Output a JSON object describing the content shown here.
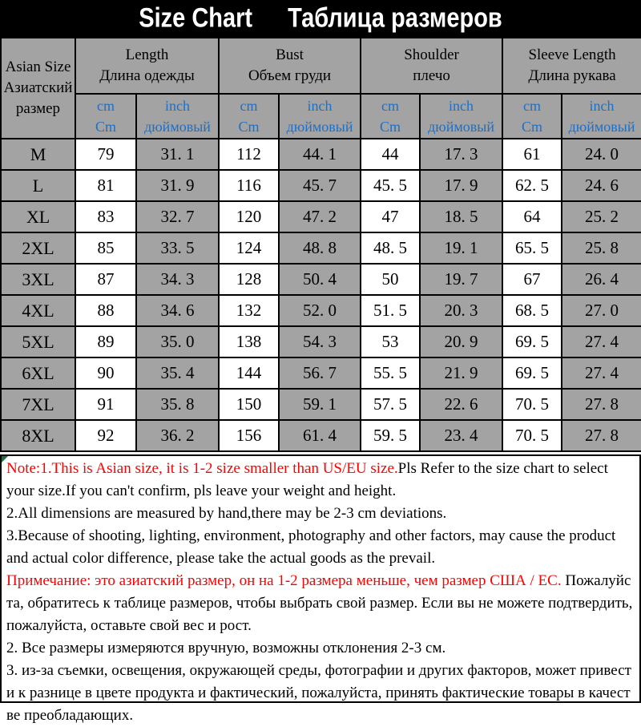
{
  "header": {
    "title_en": "Size Chart",
    "title_ru": "Таблица размеров"
  },
  "colors": {
    "banner_bg": "#000000",
    "title_text": "#ffffff",
    "table_gray": "#a3a3a3",
    "cell_white": "#ffffff",
    "unit_text_blue": "#1e6fc8",
    "note_red": "#ff0000",
    "note_black": "#000000",
    "border": "#000000",
    "corner_marker_green": "#1e7145"
  },
  "table": {
    "corner": {
      "line1": "Asian Size",
      "line2": "Азиатский",
      "line3": "размер"
    },
    "groups": [
      {
        "en": "Length",
        "ru": "Длина одежды"
      },
      {
        "en": "Bust",
        "ru": "Объем груди"
      },
      {
        "en": "Shoulder",
        "ru": "плечо"
      },
      {
        "en": "Sleeve Length",
        "ru": "Длина рукава"
      }
    ],
    "units": {
      "cm": {
        "line1": "cm",
        "line2": "Cm"
      },
      "inch": {
        "line1": "inch",
        "line2": "дюймовый"
      }
    },
    "rows": [
      {
        "size": "M",
        "values": [
          "79",
          "31. 1",
          "112",
          "44. 1",
          "44",
          "17. 3",
          "61",
          "24. 0"
        ]
      },
      {
        "size": "L",
        "values": [
          "81",
          "31. 9",
          "116",
          "45. 7",
          "45. 5",
          "17. 9",
          "62. 5",
          "24. 6"
        ]
      },
      {
        "size": "XL",
        "values": [
          "83",
          "32. 7",
          "120",
          "47. 2",
          "47",
          "18. 5",
          "64",
          "25. 2"
        ]
      },
      {
        "size": "2XL",
        "values": [
          "85",
          "33. 5",
          "124",
          "48. 8",
          "48. 5",
          "19. 1",
          "65. 5",
          "25. 8"
        ]
      },
      {
        "size": "3XL",
        "values": [
          "87",
          "34. 3",
          "128",
          "50. 4",
          "50",
          "19. 7",
          "67",
          "26. 4"
        ]
      },
      {
        "size": "4XL",
        "values": [
          "88",
          "34. 6",
          "132",
          "52. 0",
          "51. 5",
          "20. 3",
          "68. 5",
          "27. 0"
        ]
      },
      {
        "size": "5XL",
        "values": [
          "89",
          "35. 0",
          "138",
          "54. 3",
          "53",
          "20. 9",
          "69. 5",
          "27. 4"
        ]
      },
      {
        "size": "6XL",
        "values": [
          "90",
          "35. 4",
          "144",
          "56. 7",
          "55. 5",
          "21. 9",
          "69. 5",
          "27. 4"
        ]
      },
      {
        "size": "7XL",
        "values": [
          "91",
          "35. 8",
          "150",
          "59. 1",
          "57. 5",
          "22. 6",
          "70. 5",
          "27. 8"
        ]
      },
      {
        "size": "8XL",
        "values": [
          "92",
          "36. 2",
          "156",
          "61. 4",
          "59. 5",
          "23. 4",
          "70. 5",
          "27. 8"
        ]
      }
    ]
  },
  "notes": {
    "en": [
      {
        "red": "Note:1.This is Asian size, it is 1-2 size smaller than US/EU size.",
        "black": "Pls Refer to the size chart to select your size.If you can't confirm, pls leave your weight and height."
      },
      {
        "red": "",
        "black": "2.All dimensions are measured by hand,there may be 2-3 cm deviations."
      },
      {
        "red": "",
        "black": "3.Because of shooting, lighting, environment, photography and other factors, may cause the product and actual color difference, please take the actual goods as the prevail."
      }
    ],
    "ru": [
      {
        "red": "Примечание: это азиатский размер, он на 1-2 размера меньше, чем размер США / ЕС.",
        "black": " Пожалуйста, обратитесь к таблице размеров, чтобы выбрать свой размер. Если вы не можете подтвердить, пожалуйста, оставьте свой вес и рост."
      },
      {
        "red": "",
        "black": "2. Все размеры измеряются вручную, возможны отклонения 2-3 см."
      },
      {
        "red": "",
        "black": "3. из-за съемки, освещения, окружающей среды, фотографии и других факторов, может привести к разнице в цвете продукта и фактический, пожалуйста, принять фактические товары в качестве преобладающих."
      }
    ]
  },
  "chart_data": {
    "type": "table",
    "title": "Size Chart Таблица размеров",
    "columns": [
      "Asian Size",
      "Length cm",
      "Length inch",
      "Bust cm",
      "Bust inch",
      "Shoulder cm",
      "Shoulder inch",
      "Sleeve Length cm",
      "Sleeve Length inch"
    ],
    "rows": [
      [
        "M",
        79,
        31.1,
        112,
        44.1,
        44,
        17.3,
        61,
        24.0
      ],
      [
        "L",
        81,
        31.9,
        116,
        45.7,
        45.5,
        17.9,
        62.5,
        24.6
      ],
      [
        "XL",
        83,
        32.7,
        120,
        47.2,
        47,
        18.5,
        64,
        25.2
      ],
      [
        "2XL",
        85,
        33.5,
        124,
        48.8,
        48.5,
        19.1,
        65.5,
        25.8
      ],
      [
        "3XL",
        87,
        34.3,
        128,
        50.4,
        50,
        19.7,
        67,
        26.4
      ],
      [
        "4XL",
        88,
        34.6,
        132,
        52.0,
        51.5,
        20.3,
        68.5,
        27.0
      ],
      [
        "5XL",
        89,
        35.0,
        138,
        54.3,
        53,
        20.9,
        69.5,
        27.4
      ],
      [
        "6XL",
        90,
        35.4,
        144,
        56.7,
        55.5,
        21.9,
        69.5,
        27.4
      ],
      [
        "7XL",
        91,
        35.8,
        150,
        59.1,
        57.5,
        22.6,
        70.5,
        27.8
      ],
      [
        "8XL",
        92,
        36.2,
        156,
        61.4,
        59.5,
        23.4,
        70.5,
        27.8
      ]
    ]
  }
}
